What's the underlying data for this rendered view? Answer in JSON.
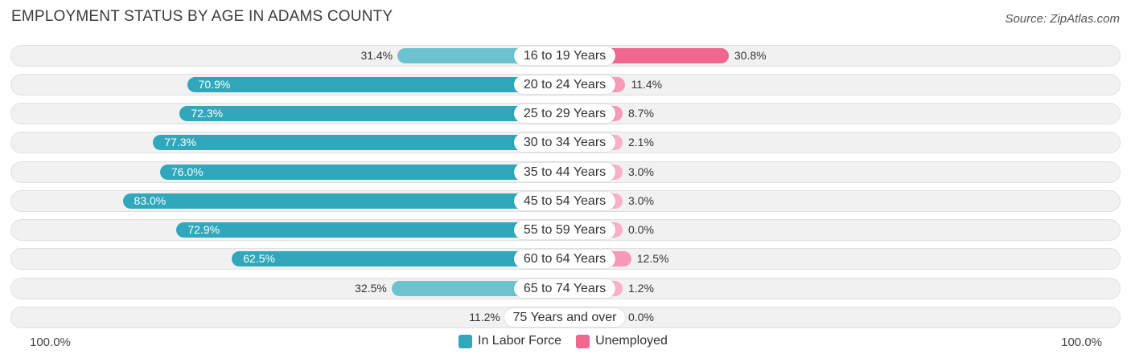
{
  "title": "EMPLOYMENT STATUS BY AGE IN ADAMS COUNTY",
  "source": "Source: ZipAtlas.com",
  "axis": {
    "left_label": "100.0%",
    "right_label": "100.0%"
  },
  "legend": {
    "in_labor_force": "In Labor Force",
    "unemployed": "Unemployed"
  },
  "colors": {
    "labor_strong": "#30a7ba",
    "labor_light": "#6cc3cf",
    "unemp_strong": "#f0678f",
    "unemp_light": "#f69ab7",
    "unemp_pale": "#f7b1c8"
  },
  "chart_data": {
    "type": "bar",
    "orientation": "horizontal-diverging",
    "title": "EMPLOYMENT STATUS BY AGE IN ADAMS COUNTY",
    "categories": [
      "16 to 19 Years",
      "20 to 24 Years",
      "25 to 29 Years",
      "30 to 34 Years",
      "35 to 44 Years",
      "45 to 54 Years",
      "55 to 59 Years",
      "60 to 64 Years",
      "65 to 74 Years",
      "75 Years and over"
    ],
    "series": [
      {
        "name": "In Labor Force",
        "values": [
          31.4,
          70.9,
          72.3,
          77.3,
          76.0,
          83.0,
          72.9,
          62.5,
          32.5,
          11.2
        ],
        "labels": [
          "31.4%",
          "70.9%",
          "72.3%",
          "77.3%",
          "76.0%",
          "83.0%",
          "72.9%",
          "62.5%",
          "32.5%",
          "11.2%"
        ]
      },
      {
        "name": "Unemployed",
        "values": [
          30.8,
          11.4,
          8.7,
          2.1,
          3.0,
          3.0,
          0.0,
          12.5,
          1.2,
          0.0
        ],
        "labels": [
          "30.8%",
          "11.4%",
          "8.7%",
          "2.1%",
          "3.0%",
          "3.0%",
          "0.0%",
          "12.5%",
          "1.2%",
          "0.0%"
        ]
      }
    ],
    "xlim": [
      -100,
      100
    ],
    "legend_position": "bottom-center"
  }
}
